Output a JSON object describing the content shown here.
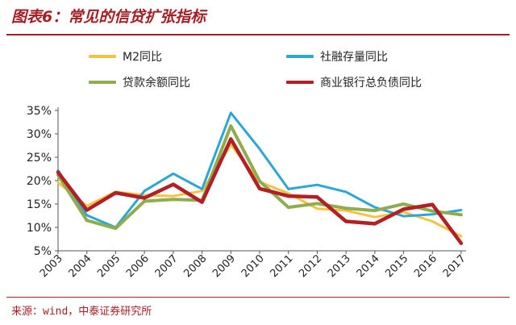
{
  "header": {
    "title": "图表6：常见的信贷扩张指标"
  },
  "source": "来源：wind，中泰证券研究所",
  "chart_data": {
    "type": "line",
    "categories": [
      "2003",
      "2004",
      "2005",
      "2006",
      "2007",
      "2008",
      "2009",
      "2010",
      "2011",
      "2012",
      "2013",
      "2014",
      "2015",
      "2016",
      "2017"
    ],
    "ylim": [
      0.05,
      0.35
    ],
    "yticks": [
      "5%",
      "10%",
      "15%",
      "20%",
      "25%",
      "30%",
      "35%"
    ],
    "ytick_values": [
      0.05,
      0.1,
      0.15,
      0.2,
      0.25,
      0.3,
      0.35
    ],
    "grid": false,
    "legend_position": "top",
    "series": [
      {
        "name": "M2同比",
        "color": "#f5c342",
        "width": 3,
        "values": [
          0.196,
          0.146,
          0.176,
          0.169,
          0.167,
          0.178,
          0.277,
          0.197,
          0.173,
          0.14,
          0.136,
          0.122,
          0.133,
          0.113,
          0.081
        ]
      },
      {
        "name": "社融存量同比",
        "color": "#2aa7d6",
        "width": 3,
        "values": [
          0.222,
          0.126,
          0.1,
          0.178,
          0.215,
          0.182,
          0.345,
          0.268,
          0.182,
          0.191,
          0.176,
          0.143,
          0.124,
          0.128,
          0.137
        ]
      },
      {
        "name": "贷款余额同比",
        "color": "#8fac4e",
        "width": 4,
        "values": [
          0.212,
          0.115,
          0.098,
          0.156,
          0.16,
          0.158,
          0.317,
          0.199,
          0.143,
          0.151,
          0.141,
          0.136,
          0.15,
          0.135,
          0.127
        ]
      },
      {
        "name": "商业银行总负债同比",
        "color": "#b21f24",
        "width": 4.5,
        "values": [
          0.218,
          0.137,
          0.174,
          0.163,
          0.192,
          0.154,
          0.289,
          0.183,
          0.167,
          0.165,
          0.113,
          0.108,
          0.139,
          0.149,
          0.066
        ]
      }
    ]
  }
}
